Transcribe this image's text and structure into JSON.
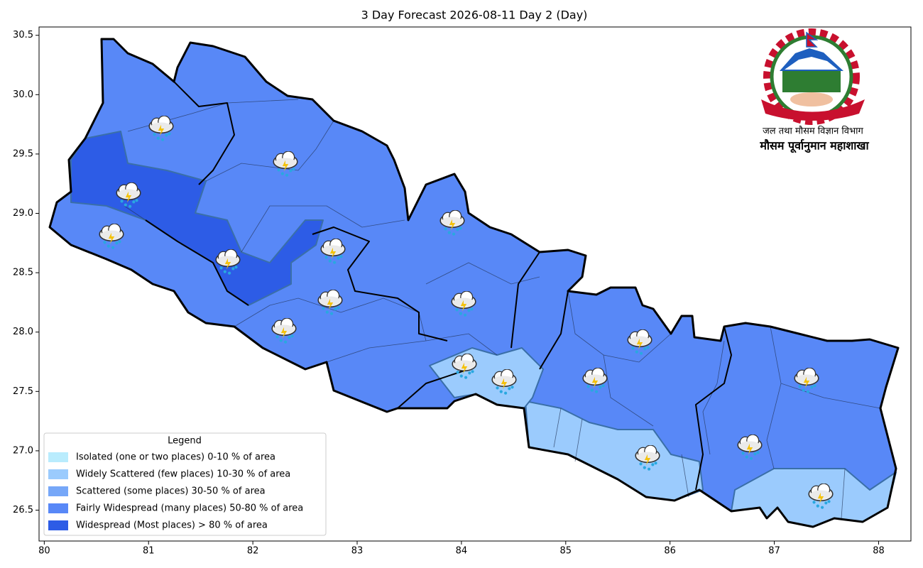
{
  "chart_data": {
    "type": "map",
    "title": "3 Day Forecast 2026-08-11 Day 2 (Day)",
    "xlim": [
      79.95,
      88.31
    ],
    "ylim": [
      26.24,
      30.57
    ],
    "xticks": [
      80,
      81,
      82,
      83,
      84,
      85,
      86,
      87,
      88
    ],
    "yticks": [
      26.5,
      {
        "value": 27,
        "label": "27.0"
      },
      27.5,
      {
        "value": 28,
        "label": "28.0"
      },
      28.5,
      {
        "value": 29,
        "label": "29.0"
      },
      29.5,
      {
        "value": 30,
        "label": "30.0"
      },
      30.5
    ],
    "legend": {
      "title": "Legend",
      "corner": "lower left",
      "items": [
        {
          "label": "Isolated (one or two places)  0-10 % of area",
          "color": "#b9ecfd"
        },
        {
          "label": "Widely Scattered (few places)  10-30 % of area",
          "color": "#9bcbfd"
        },
        {
          "label": "Scattered (some places)  30-50 % of area",
          "color": "#76a7f8"
        },
        {
          "label": "Fairly Widespread (many places)  50-80 % of area",
          "color": "#5888f7"
        },
        {
          "label": "Widespread (Most places) > 80 % of area",
          "color": "#2d5ce6"
        }
      ]
    }
  },
  "header": {
    "department": "जल तथा मौसम विज्ञान विभाग",
    "division": "मौसम पूर्वानुमान महाशाखा"
  }
}
